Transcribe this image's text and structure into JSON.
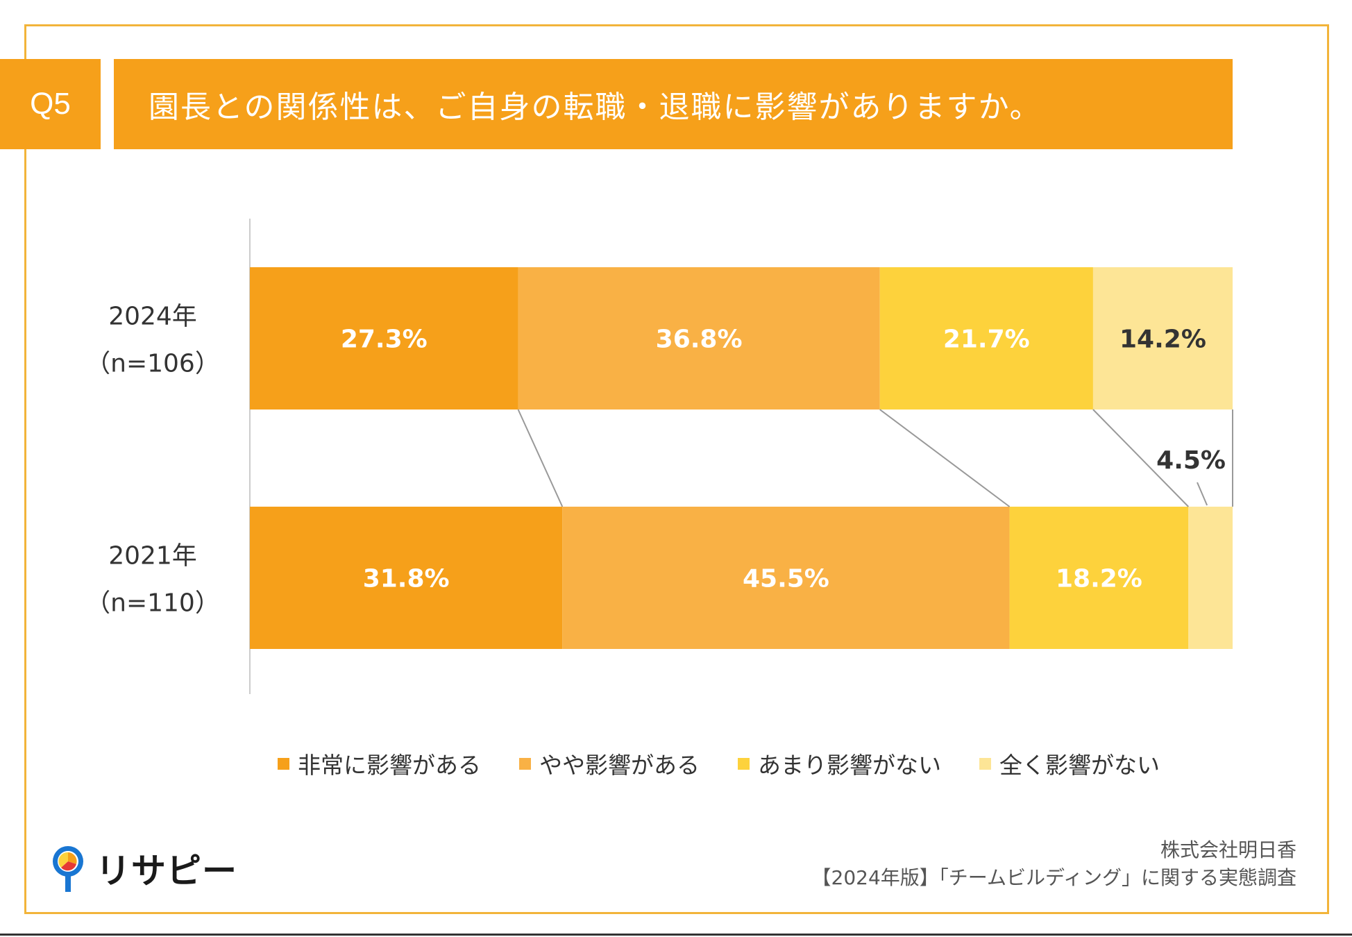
{
  "header": {
    "question_label": "Q5",
    "title": "園長との関係性は、ご自身の転職・退職に影響がありますか。"
  },
  "chart_data": {
    "type": "bar",
    "orientation": "horizontal",
    "stacked": true,
    "unit": "%",
    "categories": [
      {
        "year": "2024年",
        "n": "（n=106）"
      },
      {
        "year": "2021年",
        "n": "（n=110）"
      }
    ],
    "series": [
      {
        "name": "非常に影響がある",
        "color": "#F6A01A",
        "values": [
          27.3,
          31.8
        ],
        "labels": [
          "27.3%",
          "31.8%"
        ]
      },
      {
        "name": "やや影響がある",
        "color": "#F9B145",
        "values": [
          36.8,
          45.5
        ],
        "labels": [
          "36.8%",
          "45.5%"
        ]
      },
      {
        "name": "あまり影響がない",
        "color": "#FDD23C",
        "values": [
          21.7,
          18.2
        ],
        "labels": [
          "21.7%",
          "18.2%"
        ]
      },
      {
        "name": "全く影響がない",
        "color": "#FDE596",
        "values": [
          14.2,
          4.5
        ],
        "labels": [
          "14.2%",
          "4.5%"
        ]
      }
    ],
    "label_color_light": "#ffffff",
    "label_color_dark": "#333333",
    "xlim": [
      0,
      100
    ],
    "legend_position": "bottom"
  },
  "footer": {
    "logo_text": "リサピー",
    "company": "株式会社明日香",
    "report": "【2024年版】「チームビルディング」に関する実態調査"
  }
}
